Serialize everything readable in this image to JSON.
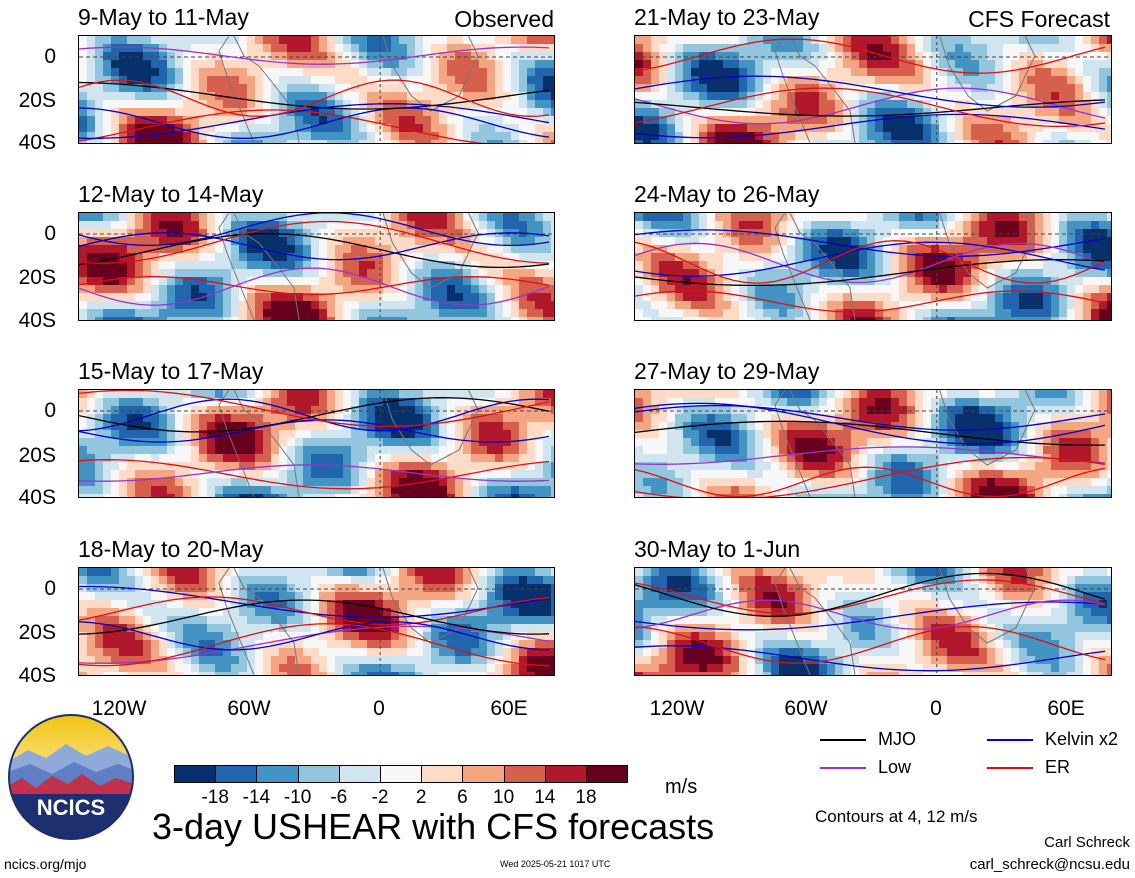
{
  "panels": [
    {
      "title": "9-May to 11-May",
      "tag": "Observed"
    },
    {
      "title": "12-May to 14-May",
      "tag": ""
    },
    {
      "title": "15-May to 17-May",
      "tag": ""
    },
    {
      "title": "18-May to 20-May",
      "tag": ""
    },
    {
      "title": "21-May to 23-May",
      "tag": "CFS Forecast"
    },
    {
      "title": "24-May to 26-May",
      "tag": ""
    },
    {
      "title": "27-May to 29-May",
      "tag": ""
    },
    {
      "title": "30-May to 1-Jun",
      "tag": ""
    }
  ],
  "y_ticks": [
    "0",
    "20S",
    "40S"
  ],
  "x_ticks": [
    "120W",
    "60W",
    "0",
    "60E"
  ],
  "legend": {
    "items": [
      {
        "label": "MJO",
        "color": "#000000"
      },
      {
        "label": "Kelvin x2",
        "color": "#0000cc"
      },
      {
        "label": "Low",
        "color": "#9933cc"
      },
      {
        "label": "ER",
        "color": "#dd1111"
      }
    ],
    "contour_note": "Contours at 4, 12 m/s"
  },
  "colorbar": {
    "labels": [
      "-18",
      "-14",
      "-10",
      "-6",
      "-2",
      "2",
      "6",
      "10",
      "14",
      "18"
    ],
    "colors": [
      "#08306b",
      "#2166ac",
      "#4393c3",
      "#92c5de",
      "#d1e5f0",
      "#f7f7f7",
      "#fddbc7",
      "#f4a582",
      "#d6604d",
      "#b2182b",
      "#67001f"
    ],
    "unit": "m/s"
  },
  "logo_text": "NCICS",
  "main_title": "3-day USHEAR with CFS forecasts",
  "footer": {
    "left": "ncics.org/mjo",
    "center": "Wed 2025-05-21 1017 UTC",
    "author": "Carl Schreck",
    "email": "carl_schreck@ncsu.edu"
  }
}
